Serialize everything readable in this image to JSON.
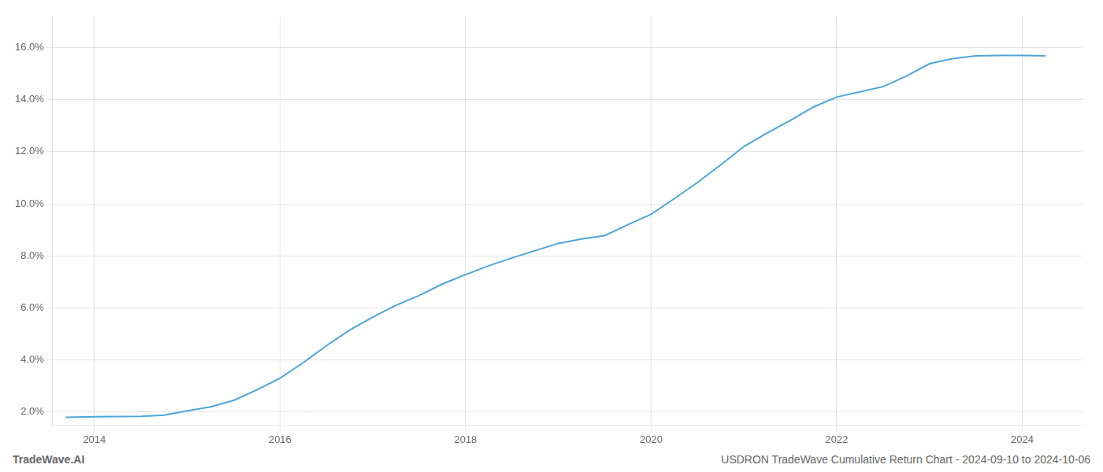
{
  "chart_data": {
    "type": "line",
    "x": [
      2013.69,
      2014.0,
      2014.25,
      2014.5,
      2014.75,
      2015.0,
      2015.25,
      2015.5,
      2015.75,
      2016.0,
      2016.25,
      2016.5,
      2016.75,
      2017.0,
      2017.25,
      2017.5,
      2017.75,
      2018.0,
      2018.25,
      2018.5,
      2018.75,
      2019.0,
      2019.25,
      2019.5,
      2019.75,
      2020.0,
      2020.25,
      2020.5,
      2020.75,
      2021.0,
      2021.25,
      2021.5,
      2021.75,
      2022.0,
      2022.25,
      2022.5,
      2022.75,
      2023.0,
      2023.25,
      2023.5,
      2023.75,
      2024.0,
      2024.25
    ],
    "values": [
      1.8,
      1.82,
      1.83,
      1.84,
      1.88,
      2.05,
      2.2,
      2.45,
      2.85,
      3.3,
      3.9,
      4.55,
      5.15,
      5.65,
      6.1,
      6.48,
      6.92,
      7.28,
      7.62,
      7.92,
      8.2,
      8.48,
      8.65,
      8.78,
      9.2,
      9.6,
      10.2,
      10.82,
      11.5,
      12.2,
      12.72,
      13.2,
      13.72,
      14.1,
      14.3,
      14.5,
      14.9,
      15.38,
      15.58,
      15.68,
      15.7,
      15.7,
      15.68
    ],
    "color": "#4da6d9",
    "xlim": [
      2013.55,
      2024.65
    ],
    "ylim": [
      1.5,
      17.2
    ],
    "xticks": [
      2014,
      2016,
      2018,
      2020,
      2022,
      2024
    ],
    "yticks": [
      {
        "value": 2.0,
        "label": "2.0%"
      },
      {
        "value": 4.0,
        "label": "4.0%"
      },
      {
        "value": 6.0,
        "label": "6.0%"
      },
      {
        "value": 8.0,
        "label": "8.0%"
      },
      {
        "value": 10.0,
        "label": "10.0%"
      },
      {
        "value": 12.0,
        "label": "12.0%"
      },
      {
        "value": 14.0,
        "label": "14.0%"
      },
      {
        "value": 16.0,
        "label": "16.0%"
      }
    ],
    "grid": true,
    "annotations": [
      "TradeWave.AI",
      "USDRON TradeWave Cumulative Return Chart - 2024-09-10 to 2024-10-06"
    ]
  }
}
